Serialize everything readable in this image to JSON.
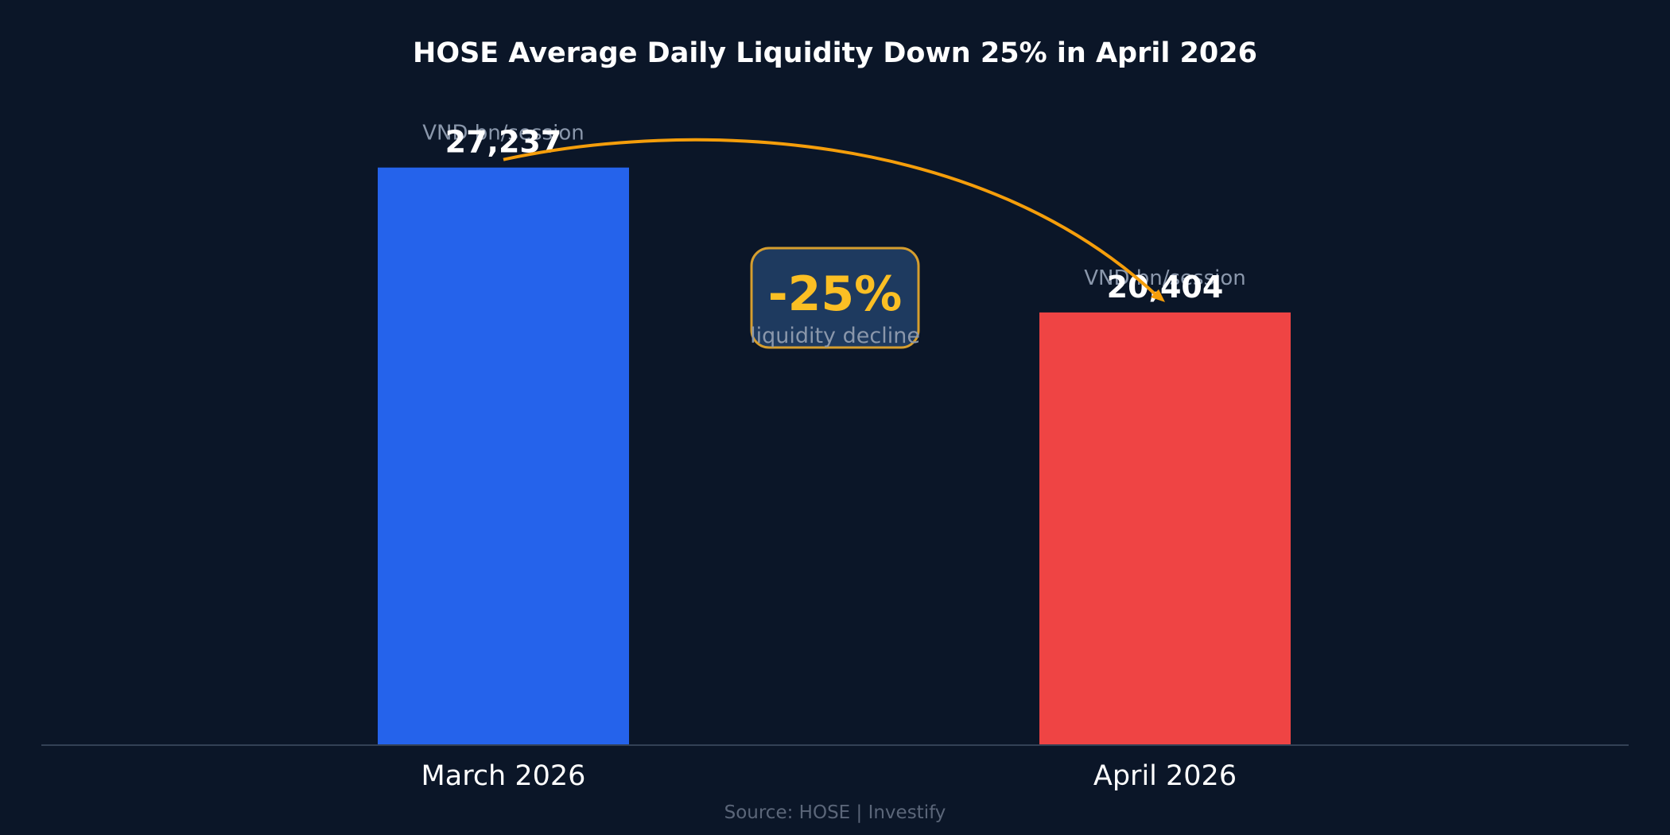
{
  "chart_data": {
    "type": "bar",
    "title": "HOSE Average Daily Liquidity Down 25% in April 2026",
    "categories": [
      "March 2026",
      "April 2026"
    ],
    "values": [
      27237,
      20404
    ],
    "value_labels": [
      "27,237",
      "20,404"
    ],
    "unit_label": "VND bn/session",
    "bar_colors": [
      "#2563eb",
      "#ef4444"
    ],
    "ylim": [
      0,
      30000
    ],
    "grid": false,
    "annotation": {
      "value": "-25%",
      "text": "liquidity decline",
      "color": "#fbbf24"
    },
    "source": "Source: HOSE  |  Investify"
  },
  "colors": {
    "background": "#0b1628",
    "axis": "#334155",
    "arrow": "#f59e0b",
    "badge_fill": "#1e3a5f",
    "badge_border": "#d69e2e"
  }
}
